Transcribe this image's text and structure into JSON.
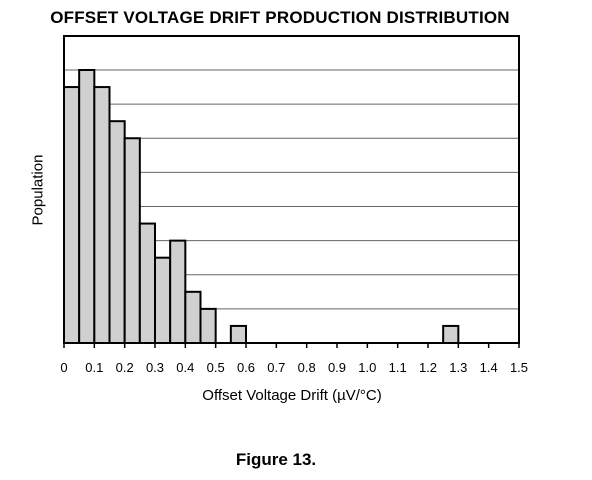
{
  "chart_data": {
    "type": "bar",
    "title": "OFFSET VOLTAGE DRIFT PRODUCTION DISTRIBUTION",
    "xlabel": "Offset Voltage Drift (µV/°C)",
    "ylabel": "Population",
    "xlim": [
      0,
      1.5
    ],
    "ylim": [
      0,
      8
    ],
    "x_ticks": [
      "0",
      "0.1",
      "0.2",
      "0.3",
      "0.4",
      "0.5",
      "0.6",
      "0.7",
      "0.8",
      "0.9",
      "1.0",
      "1.1",
      "1.2",
      "1.3",
      "1.4",
      "1.5"
    ],
    "y_ticks_shown": false,
    "grid": "horizontal",
    "bin_width": 0.05,
    "bins": [
      {
        "x0": 0.0,
        "value": 7.5
      },
      {
        "x0": 0.05,
        "value": 8.0
      },
      {
        "x0": 0.1,
        "value": 7.5
      },
      {
        "x0": 0.15,
        "value": 6.5
      },
      {
        "x0": 0.2,
        "value": 6.0
      },
      {
        "x0": 0.25,
        "value": 3.5
      },
      {
        "x0": 0.3,
        "value": 2.5
      },
      {
        "x0": 0.35,
        "value": 3.0
      },
      {
        "x0": 0.4,
        "value": 1.5
      },
      {
        "x0": 0.45,
        "value": 1.0
      },
      {
        "x0": 0.55,
        "value": 0.5
      },
      {
        "x0": 1.25,
        "value": 0.5
      }
    ],
    "bar_color": "#d0d0d0"
  },
  "caption": "Figure 13."
}
